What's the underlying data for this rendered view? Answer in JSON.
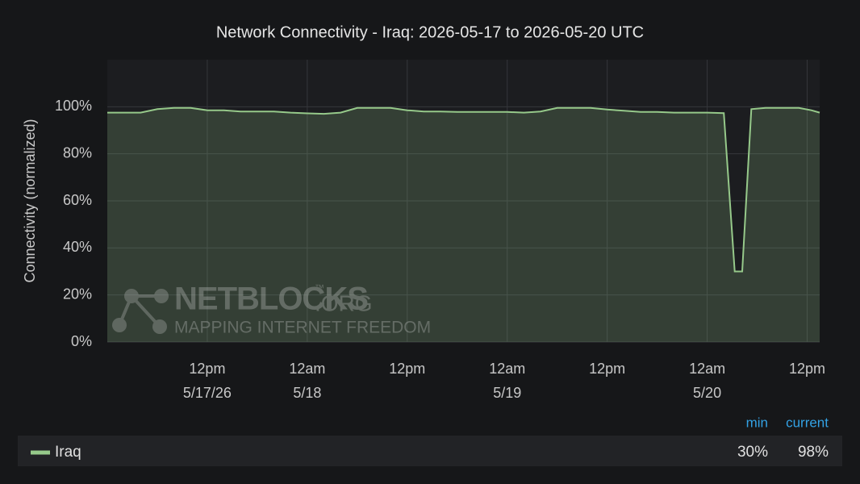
{
  "chart_data": {
    "type": "area",
    "title": "Network Connectivity - Iraq: 2026-05-17 to 2026-05-20 UTC",
    "y_label": "Connectivity (normalized)",
    "x": [
      0,
      2,
      4,
      6,
      8,
      10,
      12,
      14,
      16,
      18,
      20,
      22,
      24,
      26,
      28,
      30,
      32,
      34,
      36,
      38,
      40,
      42,
      44,
      46,
      48,
      50,
      52,
      54,
      56,
      58,
      60,
      62,
      64,
      66,
      68,
      70,
      72,
      74,
      75.3,
      76.2,
      77.3,
      79,
      81,
      83,
      84.5,
      85.5
    ],
    "series": [
      {
        "name": "Iraq",
        "color": "#96c98a",
        "values": [
          97.5,
          97.5,
          97.5,
          99,
          99.5,
          99.5,
          98.5,
          98.5,
          98,
          98,
          98,
          97.5,
          97.2,
          97,
          97.5,
          99.5,
          99.5,
          99.5,
          98.5,
          98,
          98,
          97.8,
          97.8,
          97.8,
          97.8,
          97.5,
          98,
          99.5,
          99.5,
          99.5,
          98.8,
          98.3,
          97.8,
          97.8,
          97.5,
          97.5,
          97.5,
          97.3,
          30,
          30,
          99,
          99.5,
          99.5,
          99.5,
          98.5,
          97.5
        ]
      }
    ],
    "xlim": [
      0,
      85.5
    ],
    "xticks": [
      {
        "value": 12,
        "label": "12pm",
        "date": "5/17/26"
      },
      {
        "value": 24,
        "label": "12am",
        "date": "5/18"
      },
      {
        "value": 36,
        "label": "12pm"
      },
      {
        "value": 48,
        "label": "12am",
        "date": "5/19"
      },
      {
        "value": 60,
        "label": "12pm"
      },
      {
        "value": 72,
        "label": "12am",
        "date": "5/20"
      },
      {
        "value": 84,
        "label": "12pm"
      }
    ],
    "ylim": [
      0,
      120
    ],
    "yticks": [
      {
        "value": 0,
        "label": "0%"
      },
      {
        "value": 20,
        "label": "20%"
      },
      {
        "value": 40,
        "label": "40%"
      },
      {
        "value": 60,
        "label": "60%"
      },
      {
        "value": 80,
        "label": "80%"
      },
      {
        "value": 100,
        "label": "100%"
      }
    ],
    "grid": true,
    "legend_stats": {
      "headers": [
        "min",
        "current"
      ],
      "values": [
        "30%",
        "98%"
      ]
    },
    "watermark": {
      "name": "NETBLOCKS",
      "tm": "™",
      "suffix": ".ORG",
      "tagline": "MAPPING INTERNET FREEDOM"
    }
  }
}
